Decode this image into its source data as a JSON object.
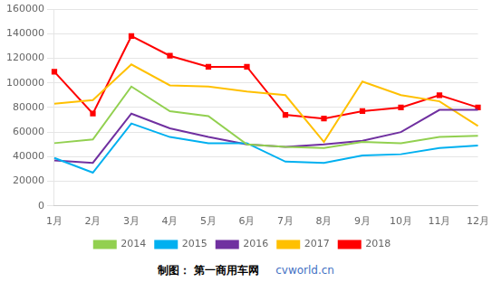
{
  "chart_data": {
    "type": "line",
    "categories": [
      "1月",
      "2月",
      "3月",
      "4月",
      "5月",
      "6月",
      "7月",
      "8月",
      "9月",
      "10月",
      "11月",
      "12月"
    ],
    "series": [
      {
        "name": "2014",
        "color": "#92D050",
        "marker": "none",
        "values": [
          51000,
          54000,
          97000,
          77000,
          73000,
          50000,
          48000,
          47000,
          52000,
          51000,
          56000,
          57000
        ]
      },
      {
        "name": "2015",
        "color": "#00B0F0",
        "marker": "none",
        "values": [
          39000,
          27000,
          67000,
          56000,
          51000,
          51000,
          36000,
          35000,
          41000,
          42000,
          47000,
          49000
        ]
      },
      {
        "name": "2016",
        "color": "#7030A0",
        "marker": "none",
        "values": [
          37000,
          35000,
          75000,
          63000,
          56000,
          50000,
          48000,
          50000,
          53000,
          60000,
          78000,
          78000
        ]
      },
      {
        "name": "2017",
        "color": "#FFC000",
        "marker": "none",
        "values": [
          83000,
          86000,
          115000,
          98000,
          97000,
          93000,
          90000,
          52000,
          101000,
          90000,
          85000,
          65000
        ]
      },
      {
        "name": "2018",
        "color": "#FF0000",
        "marker": "square",
        "values": [
          109000,
          75000,
          138000,
          122000,
          113000,
          113000,
          74000,
          71000,
          77000,
          80000,
          90000,
          80000
        ]
      }
    ],
    "ylim": [
      0,
      160000
    ],
    "yticks": [
      0,
      20000,
      40000,
      60000,
      80000,
      100000,
      120000,
      140000,
      160000
    ],
    "grid": true,
    "legend": "bottom",
    "annotations": [
      "制图： 第一商用车网",
      "cvworld.cn"
    ]
  }
}
